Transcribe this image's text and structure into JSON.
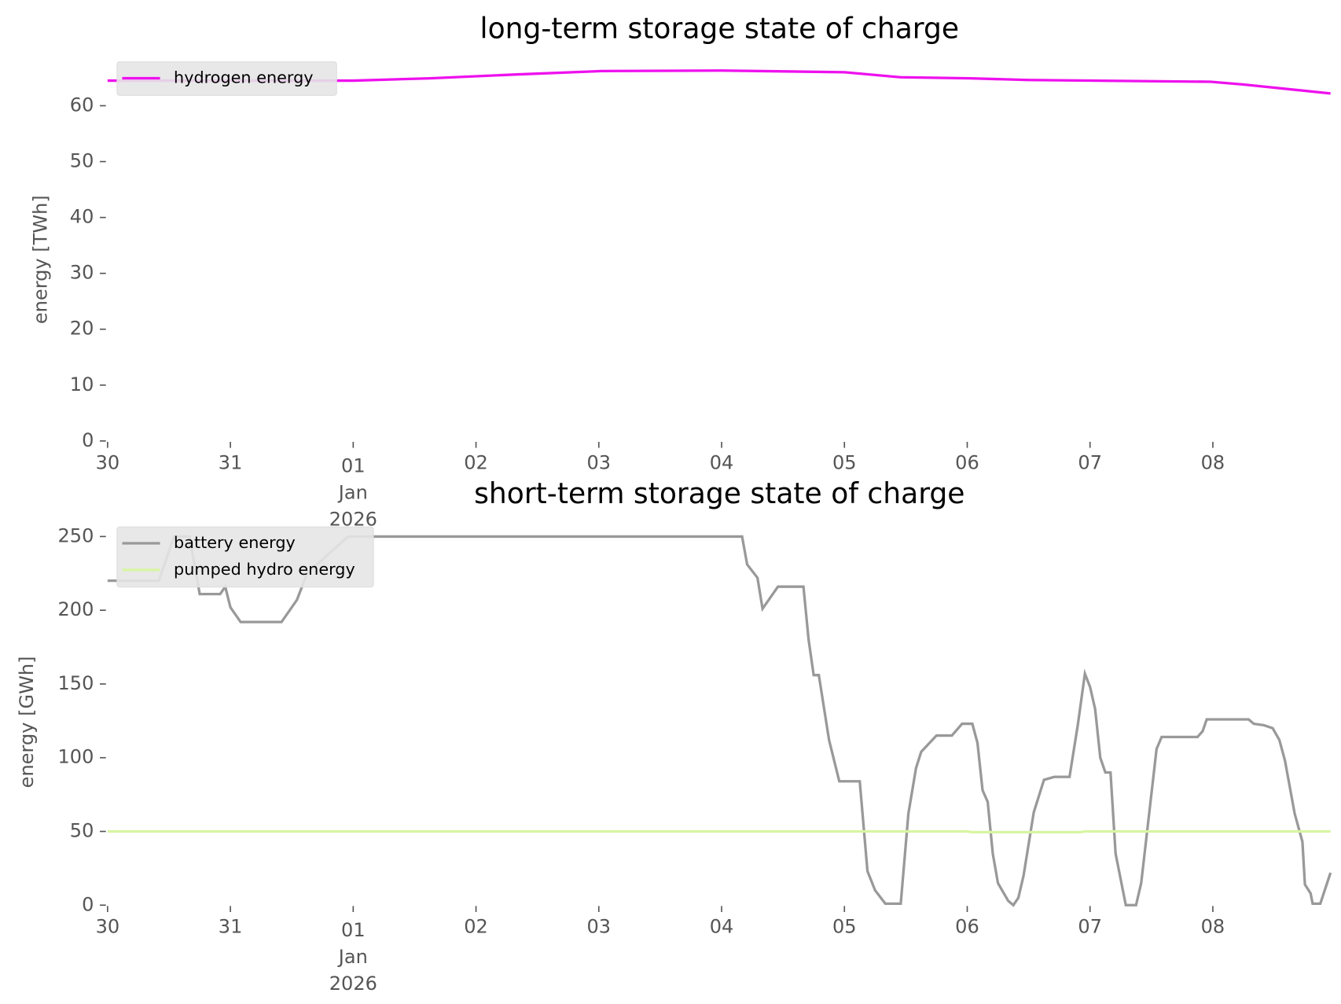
{
  "chart_data": [
    {
      "type": "line",
      "title": "long-term storage state of charge",
      "ylabel": "energy [TWh]",
      "xlim": [
        0,
        239
      ],
      "ylim": [
        0,
        68
      ],
      "xticks": [
        {
          "value": 0,
          "label": "30"
        },
        {
          "value": 24,
          "label": "31"
        },
        {
          "value": 48,
          "label": "01\nJan\n2026"
        },
        {
          "value": 72,
          "label": "02"
        },
        {
          "value": 96,
          "label": "03"
        },
        {
          "value": 120,
          "label": "04"
        },
        {
          "value": 144,
          "label": "05"
        },
        {
          "value": 168,
          "label": "06"
        },
        {
          "value": 192,
          "label": "07"
        },
        {
          "value": 216,
          "label": "08"
        }
      ],
      "yticks": [
        0,
        10,
        20,
        30,
        40,
        50,
        60
      ],
      "legend": "upper left",
      "series": [
        {
          "name": "hydrogen energy",
          "color": "#ee11ee",
          "x": [
            0,
            48,
            63,
            80,
            96.5,
            120,
            144,
            155,
            168.6,
            180,
            215.6,
            222,
            239
          ],
          "values": [
            64.5,
            64.5,
            64.9,
            65.6,
            66.2,
            66.3,
            66.0,
            65.1,
            64.9,
            64.6,
            64.3,
            63.8,
            62.2
          ]
        }
      ]
    },
    {
      "type": "line",
      "title": "short-term storage state of charge",
      "ylabel": "energy [GWh]",
      "xlim": [
        0,
        239
      ],
      "ylim": [
        0,
        260
      ],
      "xticks": [
        {
          "value": 0,
          "label": "30"
        },
        {
          "value": 24,
          "label": "31"
        },
        {
          "value": 48,
          "label": "01\nJan\n2026"
        },
        {
          "value": 72,
          "label": "02"
        },
        {
          "value": 96,
          "label": "03"
        },
        {
          "value": 120,
          "label": "04"
        },
        {
          "value": 144,
          "label": "05"
        },
        {
          "value": 168,
          "label": "06"
        },
        {
          "value": 192,
          "label": "07"
        },
        {
          "value": 216,
          "label": "08"
        }
      ],
      "yticks": [
        0,
        50,
        100,
        150,
        200,
        250
      ],
      "legend": "upper left",
      "series": [
        {
          "name": "battery energy",
          "color": "#999999",
          "x": [
            0,
            10,
            13,
            16,
            18,
            22,
            23,
            24,
            26,
            34,
            37,
            39,
            47,
            124,
            125,
            127,
            128,
            131,
            136,
            137,
            138,
            139,
            141,
            143,
            147,
            148.5,
            150,
            152,
            155,
            156.5,
            158,
            159,
            162,
            165,
            167,
            169,
            170,
            171,
            172,
            173,
            174,
            176,
            177,
            178,
            179,
            181,
            183,
            185,
            188,
            189.6,
            191,
            192,
            193,
            194,
            195,
            196,
            197,
            199,
            201,
            202,
            205,
            206,
            213,
            214,
            214.8,
            223,
            224,
            226,
            227.7,
            229,
            230.1,
            232,
            233.5,
            234,
            235.1,
            235.5,
            237,
            239
          ],
          "values": [
            220,
            220,
            250,
            250,
            211,
            211,
            216,
            202,
            192,
            192,
            207,
            225,
            250,
            250,
            231,
            222,
            201,
            216,
            216,
            180,
            156,
            156,
            112,
            84,
            84,
            23,
            10,
            1,
            1,
            62,
            93,
            104,
            115,
            115,
            123,
            123,
            110,
            78,
            70,
            35,
            15,
            3,
            0,
            5,
            20,
            63,
            85,
            87,
            87,
            122,
            157,
            148,
            133,
            100,
            90,
            90,
            35,
            0,
            0,
            15,
            106,
            114,
            114,
            118,
            126,
            126,
            123,
            122,
            120,
            112,
            98,
            62,
            43,
            14,
            8,
            1,
            1,
            22
          ]
        },
        {
          "name": "pumped hydro energy",
          "color": "#d8f5a2",
          "x": [
            0,
            168,
            169,
            190,
            191,
            239
          ],
          "values": [
            50,
            50,
            49.5,
            49.5,
            50,
            50
          ]
        }
      ]
    }
  ]
}
